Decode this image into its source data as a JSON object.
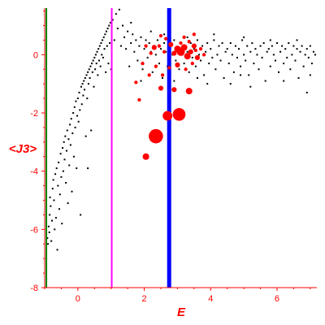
{
  "chart_data": {
    "type": "scatter",
    "xlabel": "E",
    "ylabel": "<J3>",
    "xlim": [
      -1.0,
      7.2
    ],
    "ylim": [
      -8,
      1.6
    ],
    "x_ticks": [
      0,
      2,
      4,
      6
    ],
    "y_ticks": [
      0,
      -2,
      -4,
      -6,
      -8
    ],
    "grid": false,
    "axis_color": "#ff0000",
    "vertical_lines": [
      {
        "x": -0.95,
        "color": "#008000"
      },
      {
        "x": 1.02,
        "color": "#ff00ff"
      },
      {
        "x": 2.75,
        "color": "#0000ff"
      }
    ],
    "series": [
      {
        "color": "#000000",
        "marker": "small-dot",
        "points": [
          [
            -0.95,
            -7.0
          ],
          [
            -0.92,
            -6.3
          ],
          [
            -0.9,
            -6.5
          ],
          [
            -0.88,
            -5.9
          ],
          [
            -0.86,
            -6.1
          ],
          [
            -0.85,
            -5.5
          ],
          [
            -0.84,
            -4.9
          ],
          [
            -0.82,
            -5.2
          ],
          [
            -0.8,
            -6.4
          ],
          [
            -0.78,
            -5.7
          ],
          [
            -0.76,
            -4.6
          ],
          [
            -0.74,
            -4.3
          ],
          [
            -0.72,
            -5.0
          ],
          [
            -0.7,
            -6.0
          ],
          [
            -0.68,
            -4.1
          ],
          [
            -0.66,
            -5.6
          ],
          [
            -0.64,
            -3.9
          ],
          [
            -0.62,
            -6.7
          ],
          [
            -0.6,
            -4.5
          ],
          [
            -0.58,
            -3.7
          ],
          [
            -0.56,
            -5.3
          ],
          [
            -0.54,
            -4.8
          ],
          [
            -0.52,
            -3.4
          ],
          [
            -0.5,
            -4.2
          ],
          [
            -0.48,
            -5.8
          ],
          [
            -0.46,
            -3.2
          ],
          [
            -0.44,
            -4.0
          ],
          [
            -0.42,
            -3.0
          ],
          [
            -0.4,
            -3.6
          ],
          [
            -0.38,
            -2.8
          ],
          [
            -0.36,
            -4.4
          ],
          [
            -0.34,
            -3.3
          ],
          [
            -0.32,
            -2.6
          ],
          [
            -0.3,
            -5.1
          ],
          [
            -0.28,
            -2.9
          ],
          [
            -0.26,
            -3.8
          ],
          [
            -0.24,
            -2.4
          ],
          [
            -0.22,
            -3.1
          ],
          [
            -0.2,
            -2.2
          ],
          [
            -0.18,
            -4.7
          ],
          [
            -0.16,
            -2.7
          ],
          [
            -0.14,
            -2.0
          ],
          [
            -0.12,
            -3.5
          ],
          [
            -0.1,
            -1.8
          ],
          [
            -0.08,
            -2.5
          ],
          [
            -0.06,
            -1.6
          ],
          [
            -0.04,
            -3.9
          ],
          [
            -0.02,
            -2.1
          ],
          [
            0.0,
            -1.5
          ],
          [
            0.02,
            -2.3
          ],
          [
            0.04,
            -1.3
          ],
          [
            0.06,
            -1.9
          ],
          [
            0.08,
            -5.5
          ],
          [
            0.1,
            -1.1
          ],
          [
            0.12,
            -1.7
          ],
          [
            0.14,
            -1.0
          ],
          [
            0.16,
            -1.4
          ],
          [
            0.18,
            -0.9
          ],
          [
            0.2,
            -1.2
          ],
          [
            0.22,
            -0.8
          ],
          [
            0.24,
            -2.8
          ],
          [
            0.26,
            -0.7
          ],
          [
            0.28,
            -1.5
          ],
          [
            0.3,
            -0.6
          ],
          [
            0.32,
            -1.0
          ],
          [
            0.34,
            -0.5
          ],
          [
            0.36,
            -0.8
          ],
          [
            0.38,
            -0.4
          ],
          [
            0.4,
            -2.6
          ],
          [
            0.42,
            -0.3
          ],
          [
            0.44,
            -0.6
          ],
          [
            0.46,
            -0.2
          ],
          [
            0.48,
            -1.1
          ],
          [
            0.5,
            -0.1
          ],
          [
            0.52,
            -0.5
          ],
          [
            0.54,
            0.0
          ],
          [
            0.56,
            -0.3
          ],
          [
            0.58,
            0.1
          ],
          [
            0.6,
            -0.7
          ],
          [
            0.62,
            0.2
          ],
          [
            0.64,
            -0.2
          ],
          [
            0.66,
            0.3
          ],
          [
            0.68,
            -0.4
          ],
          [
            0.7,
            0.4
          ],
          [
            0.72,
            0.0
          ],
          [
            0.74,
            0.5
          ],
          [
            0.76,
            -0.1
          ],
          [
            0.78,
            0.6
          ],
          [
            0.8,
            0.2
          ],
          [
            0.82,
            0.7
          ],
          [
            0.84,
            -0.6
          ],
          [
            0.86,
            0.8
          ],
          [
            0.88,
            0.3
          ],
          [
            0.9,
            0.9
          ],
          [
            0.92,
            -0.3
          ],
          [
            0.94,
            1.0
          ],
          [
            0.96,
            0.4
          ],
          [
            0.98,
            1.1
          ],
          [
            1.0,
            -0.5
          ],
          [
            0.3,
            -3.9
          ],
          [
            1.05,
            1.2
          ],
          [
            1.1,
            0.5
          ],
          [
            1.15,
            1.4
          ],
          [
            1.2,
            0.9
          ],
          [
            1.25,
            1.55
          ],
          [
            1.3,
            0.3
          ],
          [
            1.35,
            1.0
          ],
          [
            1.4,
            0.6
          ],
          [
            1.45,
            0.2
          ],
          [
            1.5,
            0.8
          ],
          [
            1.55,
            -0.4
          ],
          [
            1.6,
            0.4
          ],
          [
            1.65,
            0.7
          ],
          [
            1.7,
            0.1
          ],
          [
            1.75,
            0.5
          ],
          [
            1.8,
            -0.2
          ],
          [
            1.85,
            0.3
          ],
          [
            1.9,
            0.6
          ],
          [
            1.95,
            -0.5
          ],
          [
            2.0,
            0.2
          ],
          [
            2.05,
            0.5
          ],
          [
            2.1,
            -0.1
          ],
          [
            2.15,
            0.4
          ],
          [
            2.2,
            0.1
          ],
          [
            2.25,
            -0.6
          ],
          [
            2.3,
            0.3
          ],
          [
            2.35,
            0.0
          ],
          [
            2.4,
            0.5
          ],
          [
            2.45,
            -0.3
          ],
          [
            2.5,
            0.2
          ],
          [
            2.55,
            -0.8
          ],
          [
            2.6,
            0.4
          ],
          [
            2.65,
            0.1
          ],
          [
            2.7,
            -0.4
          ],
          [
            2.8,
            0.3
          ],
          [
            2.85,
            0.0
          ],
          [
            2.9,
            0.5
          ],
          [
            2.95,
            -0.2
          ],
          [
            3.0,
            0.2
          ],
          [
            3.05,
            -0.5
          ],
          [
            3.1,
            0.4
          ],
          [
            3.15,
            0.0
          ],
          [
            3.2,
            -0.3
          ],
          [
            3.25,
            0.3
          ],
          [
            3.3,
            0.1
          ],
          [
            3.35,
            -0.6
          ],
          [
            3.4,
            0.4
          ],
          [
            3.45,
            -0.1
          ],
          [
            3.5,
            0.2
          ],
          [
            3.55,
            -0.4
          ],
          [
            3.6,
            0.5
          ],
          [
            3.65,
            0.0
          ],
          [
            3.7,
            -0.2
          ],
          [
            3.75,
            0.3
          ],
          [
            3.8,
            -0.7
          ],
          [
            3.85,
            0.1
          ],
          [
            3.9,
            0.4
          ],
          [
            3.95,
            -0.3
          ],
          [
            4.0,
            0.2
          ],
          [
            4.05,
            -0.1
          ],
          [
            4.1,
            0.5
          ],
          [
            4.15,
            -0.5
          ],
          [
            4.2,
            0.0
          ],
          [
            4.25,
            0.3
          ],
          [
            4.3,
            -0.2
          ],
          [
            4.35,
            0.4
          ],
          [
            4.4,
            -0.8
          ],
          [
            4.45,
            0.1
          ],
          [
            4.5,
            0.2
          ],
          [
            4.55,
            -0.3
          ],
          [
            4.6,
            0.4
          ],
          [
            4.65,
            0.0
          ],
          [
            4.7,
            -0.6
          ],
          [
            4.75,
            0.3
          ],
          [
            4.8,
            -0.1
          ],
          [
            4.85,
            0.2
          ],
          [
            4.9,
            -0.4
          ],
          [
            4.95,
            0.5
          ],
          [
            5.0,
            0.0
          ],
          [
            5.05,
            -0.2
          ],
          [
            5.1,
            0.3
          ],
          [
            5.15,
            -0.7
          ],
          [
            5.2,
            0.1
          ],
          [
            5.25,
            0.4
          ],
          [
            5.3,
            -0.3
          ],
          [
            5.35,
            0.2
          ],
          [
            5.4,
            0.0
          ],
          [
            5.45,
            -0.5
          ],
          [
            5.5,
            0.3
          ],
          [
            5.55,
            -0.1
          ],
          [
            5.6,
            0.4
          ],
          [
            5.65,
            -0.9
          ],
          [
            5.7,
            0.1
          ],
          [
            5.75,
            0.2
          ],
          [
            5.8,
            -0.4
          ],
          [
            5.85,
            0.3
          ],
          [
            5.9,
            0.0
          ],
          [
            5.95,
            -0.2
          ],
          [
            6.0,
            0.4
          ],
          [
            6.05,
            -0.6
          ],
          [
            6.1,
            0.1
          ],
          [
            6.15,
            0.3
          ],
          [
            6.2,
            -0.3
          ],
          [
            6.25,
            0.2
          ],
          [
            6.3,
            -0.1
          ],
          [
            6.35,
            0.4
          ],
          [
            6.4,
            -0.5
          ],
          [
            6.45,
            0.0
          ],
          [
            6.5,
            0.3
          ],
          [
            6.55,
            -0.2
          ],
          [
            6.6,
            0.2
          ],
          [
            6.65,
            -0.8
          ],
          [
            6.7,
            0.1
          ],
          [
            6.75,
            0.3
          ],
          [
            6.8,
            -0.4
          ],
          [
            6.85,
            0.0
          ],
          [
            6.9,
            0.2
          ],
          [
            6.95,
            -0.1
          ],
          [
            7.0,
            0.3
          ],
          [
            7.05,
            -0.3
          ],
          [
            7.1,
            0.1
          ],
          [
            7.15,
            0.0
          ],
          [
            2.6,
            0.7
          ],
          [
            3.3,
            0.6
          ],
          [
            4.1,
            0.7
          ],
          [
            5.0,
            0.6
          ],
          [
            5.8,
            0.5
          ],
          [
            6.6,
            0.5
          ],
          [
            1.6,
            1.1
          ],
          [
            2.2,
            0.8
          ],
          [
            3.9,
            -1.0
          ],
          [
            4.6,
            -1.0
          ],
          [
            5.2,
            -1.1
          ],
          [
            6.2,
            -0.9
          ],
          [
            7.0,
            -0.7
          ],
          [
            1.9,
            -0.9
          ],
          [
            2.9,
            -0.9
          ],
          [
            3.6,
            -0.8
          ],
          [
            4.9,
            -0.7
          ],
          [
            6.9,
            -1.3
          ]
        ]
      },
      {
        "color": "#ff0000",
        "marker": "filled-circle",
        "points": [
          [
            2.35,
            -2.8,
            8
          ],
          [
            3.05,
            -2.05,
            7
          ],
          [
            2.7,
            -2.1,
            5
          ],
          [
            2.05,
            -3.5,
            3
          ],
          [
            3.35,
            -1.25,
            3
          ],
          [
            2.5,
            -1.15,
            2
          ],
          [
            2.9,
            -1.2,
            2
          ],
          [
            1.75,
            -0.95,
            1
          ],
          [
            2.15,
            -0.7,
            1
          ],
          [
            2.35,
            -0.4,
            1
          ],
          [
            1.95,
            -0.3,
            1
          ],
          [
            2.2,
            0.05,
            1
          ],
          [
            2.3,
            0.25,
            2
          ],
          [
            2.45,
            0.3,
            1
          ],
          [
            2.6,
            0.1,
            1
          ],
          [
            2.8,
            0.35,
            2
          ],
          [
            2.9,
            0.05,
            2
          ],
          [
            3.0,
            0.2,
            3
          ],
          [
            3.1,
            0.1,
            4
          ],
          [
            3.2,
            0.25,
            3
          ],
          [
            3.3,
            -0.05,
            3
          ],
          [
            3.4,
            0.1,
            2
          ],
          [
            3.5,
            0.3,
            2
          ],
          [
            3.6,
            -0.1,
            2
          ],
          [
            3.7,
            0.2,
            1
          ],
          [
            3.2,
            0.6,
            1
          ],
          [
            3.5,
            0.7,
            1
          ],
          [
            2.5,
            0.65,
            1
          ],
          [
            3.0,
            -0.35,
            2
          ],
          [
            3.25,
            -0.5,
            1
          ],
          [
            3.45,
            -0.3,
            1
          ],
          [
            2.75,
            -0.45,
            1
          ],
          [
            3.1,
            0.4,
            1
          ],
          [
            3.35,
            0.45,
            1
          ],
          [
            2.55,
            -0.7,
            1
          ],
          [
            1.85,
            -1.55,
            1
          ],
          [
            2.05,
            0.3,
            1
          ],
          [
            3.8,
            0.0,
            1
          ],
          [
            2.65,
            0.55,
            1
          ],
          [
            3.55,
            0.15,
            1
          ]
        ]
      }
    ]
  }
}
